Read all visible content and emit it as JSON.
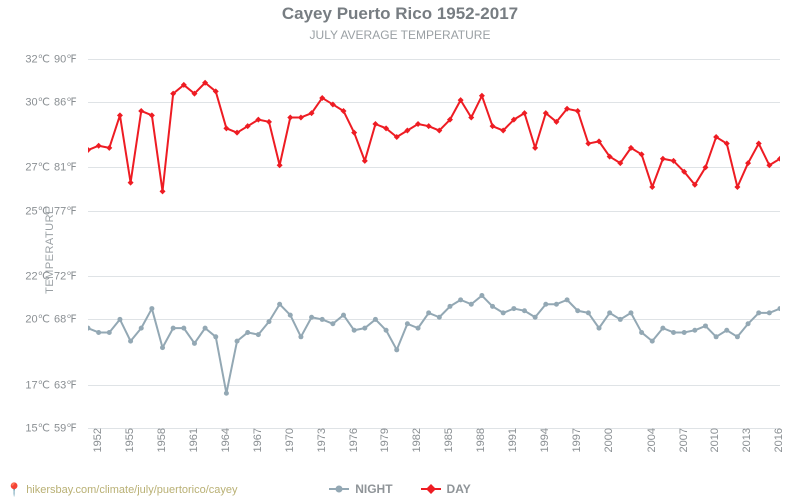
{
  "chart": {
    "type": "line",
    "title": "Cayey Puerto Rico 1952-2017",
    "subtitle": "JULY AVERAGE TEMPERATURE",
    "ylabel": "TEMPERATURE",
    "background_color": "#ffffff",
    "grid_color": "#dfe3e6",
    "text_color": "#8a8f93",
    "title_color": "#777d82",
    "title_fontsize": 17,
    "subtitle_fontsize": 12,
    "axis_fontsize": 11,
    "years_start": 1952,
    "years_end": 2017,
    "xticks": [
      1952,
      1955,
      1958,
      1961,
      1964,
      1967,
      1970,
      1973,
      1976,
      1979,
      1982,
      1985,
      1988,
      1991,
      1994,
      1997,
      2000,
      2004,
      2007,
      2010,
      2013,
      2016
    ],
    "y_celsius": [
      15,
      17,
      20,
      22,
      25,
      27,
      30,
      32
    ],
    "y_fahrenheit": [
      59,
      63,
      68,
      72,
      77,
      81,
      86,
      90
    ],
    "ylim_c": [
      15,
      32.5
    ],
    "series": {
      "day": {
        "label": "DAY",
        "color": "#ee1c23",
        "marker": "diamond",
        "marker_size": 6,
        "line_width": 2,
        "values_c": [
          27.8,
          28.0,
          27.9,
          29.4,
          26.3,
          29.6,
          29.4,
          25.9,
          30.4,
          30.8,
          30.4,
          30.9,
          30.5,
          28.8,
          28.6,
          28.9,
          29.2,
          29.1,
          27.1,
          29.3,
          29.3,
          29.5,
          30.2,
          29.9,
          29.6,
          28.6,
          27.3,
          29.0,
          28.8,
          28.4,
          28.7,
          29.0,
          28.9,
          28.7,
          29.2,
          30.1,
          29.3,
          30.3,
          28.9,
          28.7,
          29.2,
          29.5,
          27.9,
          29.5,
          29.1,
          29.7,
          29.6,
          28.1,
          28.2,
          27.5,
          27.2,
          27.9,
          27.6,
          26.1,
          27.4,
          27.3,
          26.8,
          26.2,
          27.0,
          28.4,
          28.1,
          26.1,
          27.2,
          28.1,
          27.1,
          27.4
        ]
      },
      "night": {
        "label": "NIGHT",
        "color": "#93a8b4",
        "marker": "circle",
        "marker_size": 5,
        "line_width": 2,
        "values_c": [
          19.6,
          19.4,
          19.4,
          20.0,
          19.0,
          19.6,
          20.5,
          18.7,
          19.6,
          19.6,
          18.9,
          19.6,
          19.2,
          16.6,
          19.0,
          19.4,
          19.3,
          19.9,
          20.7,
          20.2,
          19.2,
          20.1,
          20.0,
          19.8,
          20.2,
          19.5,
          19.6,
          20.0,
          19.5,
          18.6,
          19.8,
          19.6,
          20.3,
          20.1,
          20.6,
          20.9,
          20.7,
          21.1,
          20.6,
          20.3,
          20.5,
          20.4,
          20.1,
          20.7,
          20.7,
          20.9,
          20.4,
          20.3,
          19.6,
          20.3,
          20.0,
          20.3,
          19.4,
          19.0,
          19.6,
          19.4,
          19.4,
          19.5,
          19.7,
          19.2,
          19.5,
          19.2,
          19.8,
          20.3,
          20.3,
          20.5
        ]
      }
    },
    "legend_order": [
      "night",
      "day"
    ]
  },
  "attribution": {
    "pin": "📍",
    "url": "hikersbay.com/climate/july/puertorico/cayey"
  }
}
